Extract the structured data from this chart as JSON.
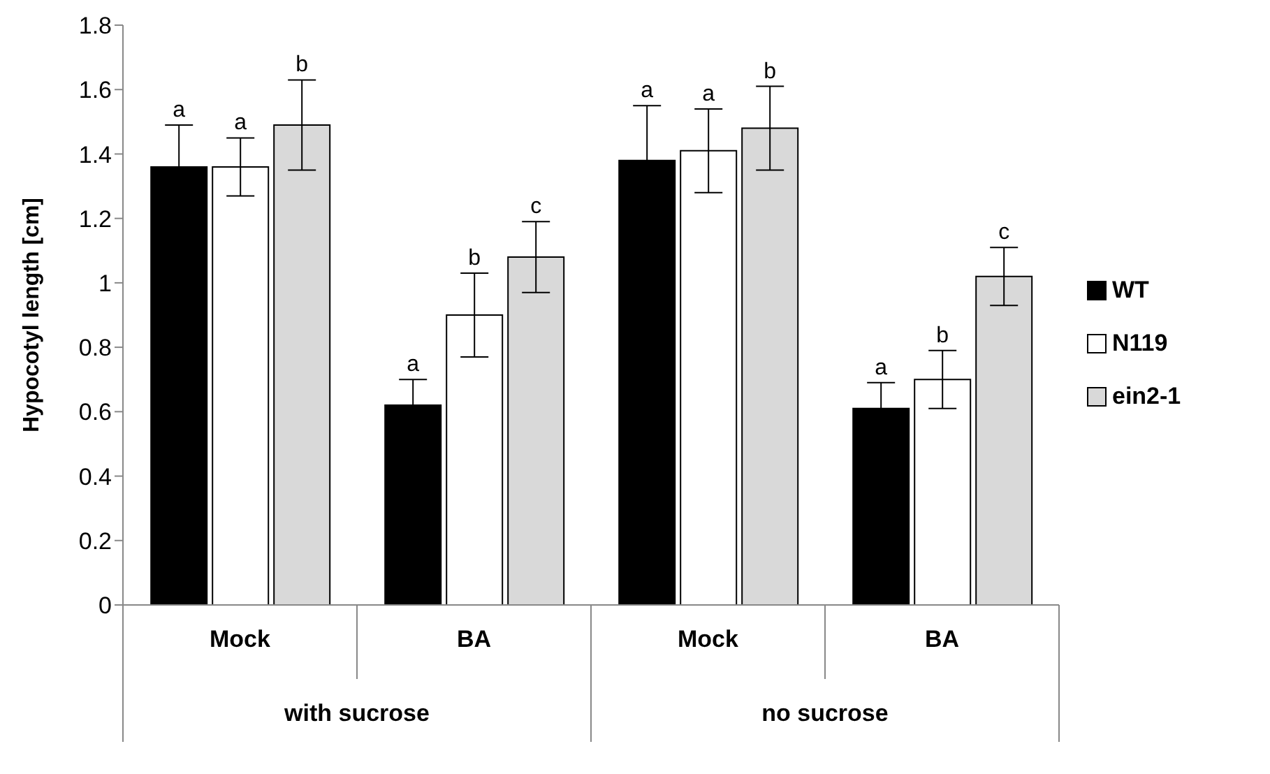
{
  "chart_data": {
    "type": "bar",
    "ylabel": "Hypocotyl length [cm]",
    "categories": [
      "Mock",
      "BA",
      "Mock",
      "BA"
    ],
    "series": [
      {
        "name": "WT",
        "color": "#000000",
        "values": [
          1.36,
          0.62,
          1.38,
          0.61
        ],
        "errors": [
          0.13,
          0.08,
          0.17,
          0.08
        ],
        "value_labels": [
          "a",
          "a",
          "a",
          "a"
        ]
      },
      {
        "name": "N119",
        "color": "#ffffff",
        "values": [
          1.36,
          0.9,
          1.41,
          0.7
        ],
        "errors": [
          0.09,
          0.13,
          0.13,
          0.09
        ],
        "value_labels": [
          "a",
          "b",
          "a",
          "b"
        ]
      },
      {
        "name": "ein2-1",
        "color": "#d9d9d9",
        "values": [
          1.49,
          1.08,
          1.48,
          1.02
        ],
        "errors": [
          0.14,
          0.11,
          0.13,
          0.09
        ],
        "value_labels": [
          "b",
          "c",
          "b",
          "c"
        ]
      }
    ],
    "ylim": [
      0,
      1.8
    ],
    "yticks": [
      0,
      0.2,
      0.4,
      0.6,
      0.8,
      1,
      1.2,
      1.4,
      1.6,
      1.8
    ],
    "grid": false,
    "legend": "right",
    "annotations": [
      "with sucrose",
      "no sucrose"
    ]
  }
}
